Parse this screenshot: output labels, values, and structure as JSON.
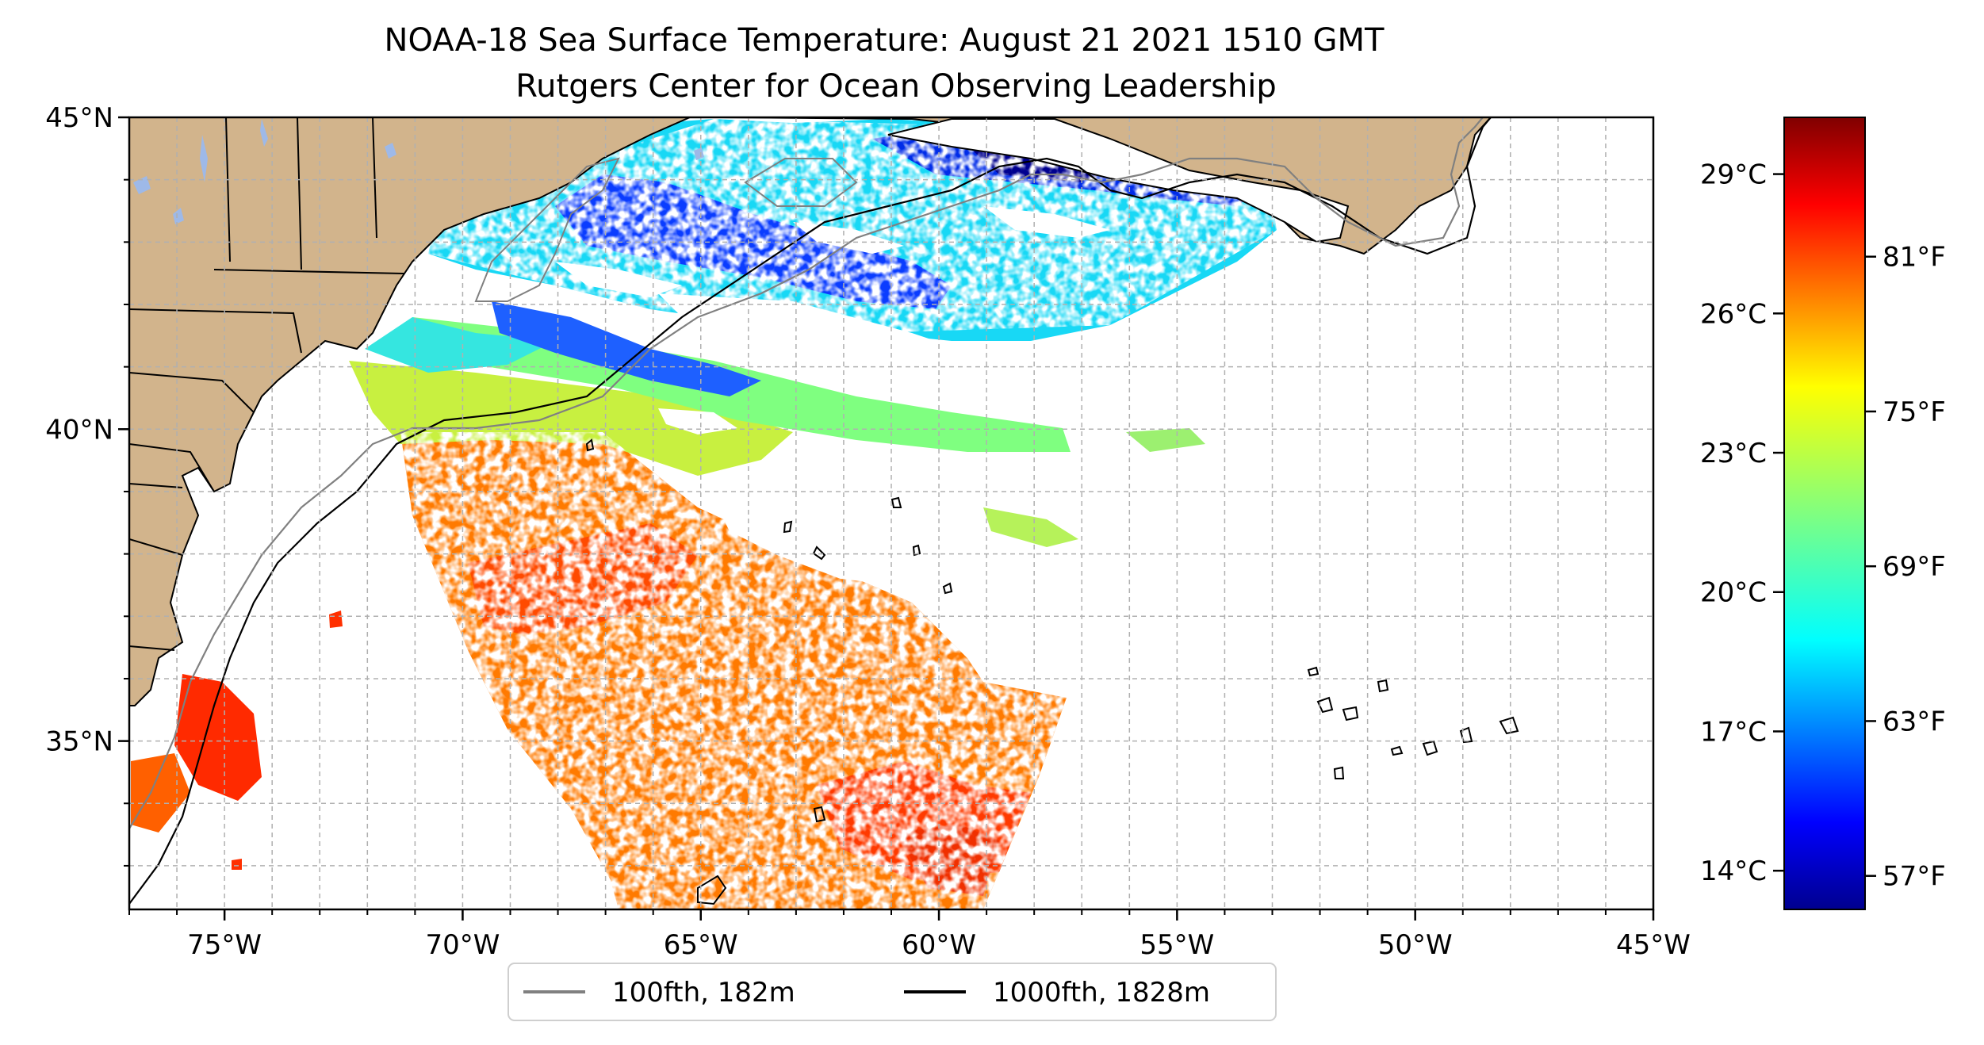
{
  "title": {
    "line1": "NOAA-18 Sea Surface Temperature: August 21 2021 1510 GMT",
    "line2": "Rutgers Center for Ocean Observing Leadership"
  },
  "map": {
    "lon_range": [
      -77,
      -45
    ],
    "lat_range": [
      32.3,
      45
    ],
    "x_ticks": [
      {
        "value": -75,
        "label": "75°W"
      },
      {
        "value": -70,
        "label": "70°W"
      },
      {
        "value": -65,
        "label": "65°W"
      },
      {
        "value": -60,
        "label": "60°W"
      },
      {
        "value": -55,
        "label": "55°W"
      },
      {
        "value": -50,
        "label": "50°W"
      },
      {
        "value": -45,
        "label": "45°W"
      }
    ],
    "y_ticks": [
      {
        "value": 45,
        "label": "45°N"
      },
      {
        "value": 40,
        "label": "40°N"
      },
      {
        "value": 35,
        "label": "35°N"
      }
    ],
    "gridlines": "dashed, 1-degree",
    "land_color": "#D2B48C",
    "lake_color": "#9EB9E8"
  },
  "colorbar": {
    "colormap": "jet",
    "celsius_ticks": [
      "29°C",
      "26°C",
      "23°C",
      "20°C",
      "17°C",
      "14°C"
    ],
    "celsius_values": [
      29,
      26,
      23,
      20,
      17,
      14
    ],
    "fahrenheit_ticks": [
      "81°F",
      "75°F",
      "69°F",
      "63°F",
      "57°F"
    ],
    "fahrenheit_values": [
      81,
      75,
      69,
      63,
      57
    ],
    "range_f": [
      55.7,
      86.4
    ],
    "colors": [
      "#00008F",
      "#0000FF",
      "#0080FF",
      "#00FFFF",
      "#80FF80",
      "#FFFF00",
      "#FF8000",
      "#FF0000",
      "#800000"
    ]
  },
  "legend": {
    "items": [
      {
        "label": "100fth, 182m",
        "color": "#808080"
      },
      {
        "label": "1000fth, 1828m",
        "color": "#000000"
      }
    ]
  }
}
